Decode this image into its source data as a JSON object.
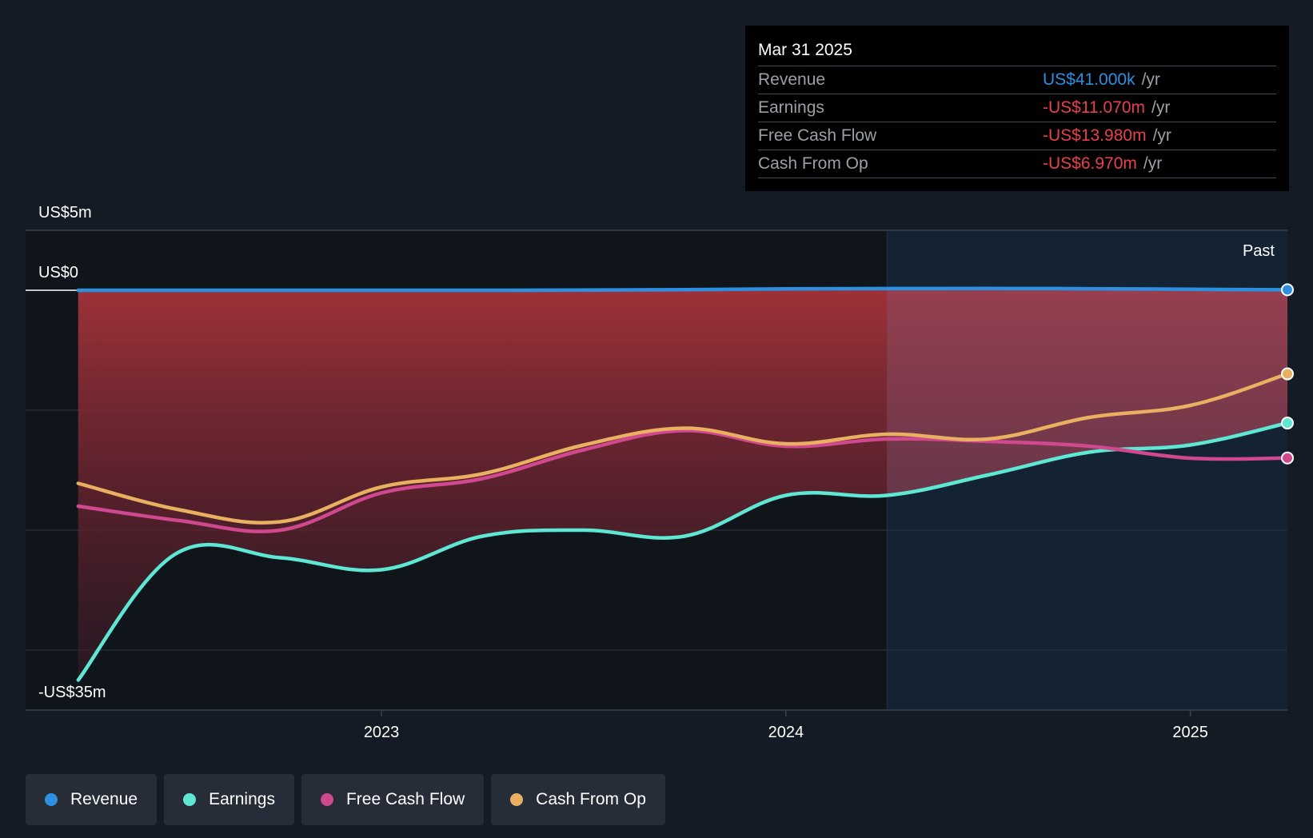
{
  "tooltip": {
    "date": "Mar 31 2025",
    "rows": [
      {
        "label": "Revenue",
        "value": "US$41.000k",
        "unit": "/yr",
        "color": "#2d8fe0"
      },
      {
        "label": "Earnings",
        "value": "-US$11.070m",
        "unit": "/yr",
        "color": "#e8414b"
      },
      {
        "label": "Free Cash Flow",
        "value": "-US$13.980m",
        "unit": "/yr",
        "color": "#e8414b"
      },
      {
        "label": "Cash From Op",
        "value": "-US$6.970m",
        "unit": "/yr",
        "color": "#e8414b"
      }
    ]
  },
  "legend": [
    {
      "label": "Revenue",
      "color": "#2d8fe0"
    },
    {
      "label": "Earnings",
      "color": "#5ee8d4"
    },
    {
      "label": "Free Cash Flow",
      "color": "#d0488e"
    },
    {
      "label": "Cash From Op",
      "color": "#e8b060"
    }
  ],
  "chart_data": {
    "type": "line",
    "title": "",
    "y_label_top": "US$5m",
    "y_label_zero": "US$0",
    "y_label_bottom": "-US$35m",
    "ylim": [
      -35,
      5
    ],
    "past_label": "Past",
    "past_start": 2024.25,
    "xlim": [
      2022.12,
      2025.24
    ],
    "x_ticks": [
      {
        "value": 2023.0,
        "label": "2023"
      },
      {
        "value": 2024.0,
        "label": "2024"
      },
      {
        "value": 2025.0,
        "label": "2025"
      }
    ],
    "gridlines": [
      0,
      -10,
      -20,
      -30
    ],
    "series": [
      {
        "name": "Revenue",
        "color": "#2d8fe0",
        "x": [
          2022.25,
          2022.75,
          2023.25,
          2023.75,
          2024.0,
          2024.5,
          2024.75,
          2025.0,
          2025.24
        ],
        "values": [
          0.0,
          0.0,
          0.0,
          0.05,
          0.12,
          0.15,
          0.13,
          0.08,
          0.04
        ]
      },
      {
        "name": "Earnings",
        "color": "#5ee8d4",
        "x": [
          2022.25,
          2022.49,
          2022.75,
          2023.0,
          2023.25,
          2023.5,
          2023.75,
          2024.0,
          2024.25,
          2024.5,
          2024.75,
          2025.0,
          2025.24
        ],
        "values": [
          -32.5,
          -22.0,
          -22.3,
          -23.3,
          -20.5,
          -20.0,
          -20.5,
          -17.1,
          -17.1,
          -15.4,
          -13.5,
          -12.9,
          -11.07
        ]
      },
      {
        "name": "Free Cash Flow",
        "color": "#d0488e",
        "x": [
          2022.25,
          2022.5,
          2022.75,
          2023.0,
          2023.25,
          2023.5,
          2023.75,
          2024.0,
          2024.25,
          2024.5,
          2024.75,
          2025.0,
          2025.24
        ],
        "values": [
          -18.0,
          -19.2,
          -20.0,
          -16.9,
          -15.7,
          -13.3,
          -11.7,
          -13.0,
          -12.4,
          -12.6,
          -13.0,
          -14.0,
          -13.98
        ]
      },
      {
        "name": "Cash From Op",
        "color": "#e8b060",
        "x": [
          2022.25,
          2022.5,
          2022.75,
          2023.0,
          2023.25,
          2023.5,
          2023.75,
          2024.0,
          2024.25,
          2024.5,
          2024.75,
          2025.0,
          2025.24
        ],
        "values": [
          -16.1,
          -18.3,
          -19.3,
          -16.4,
          -15.3,
          -12.9,
          -11.5,
          -12.8,
          -12.0,
          -12.4,
          -10.6,
          -9.6,
          -6.97
        ]
      }
    ]
  }
}
